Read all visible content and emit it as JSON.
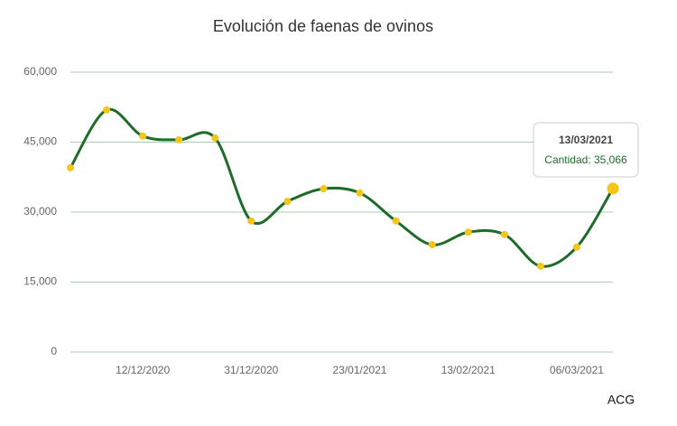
{
  "chart_data": {
    "type": "line",
    "title": "Evolución de faenas de ovinos",
    "categories": [
      null,
      null,
      "12/12/2020",
      null,
      null,
      "31/12/2020",
      null,
      null,
      "23/01/2021",
      null,
      null,
      "13/02/2021",
      null,
      null,
      "06/03/2021",
      null
    ],
    "series": [
      {
        "name": "Cantidad",
        "color": "#1e6b2a",
        "values": [
          39500,
          51900,
          46300,
          45500,
          45900,
          28100,
          32300,
          35000,
          34100,
          28100,
          23000,
          25700,
          25200,
          18400,
          22500,
          35066
        ]
      }
    ],
    "point_color": "#f5c518",
    "ylim": [
      0,
      60000
    ],
    "yticks": [
      0,
      {
        "value": 15000,
        "label": "15,000"
      },
      {
        "value": 30000,
        "label": "30,000"
      },
      {
        "value": 45000,
        "label": "45,000"
      },
      {
        "value": 60000,
        "label": "60,000"
      }
    ],
    "grid": true,
    "tooltip": {
      "title": "13/03/2021",
      "text": "Cantidad: 35,066"
    },
    "footer": "ACG"
  }
}
